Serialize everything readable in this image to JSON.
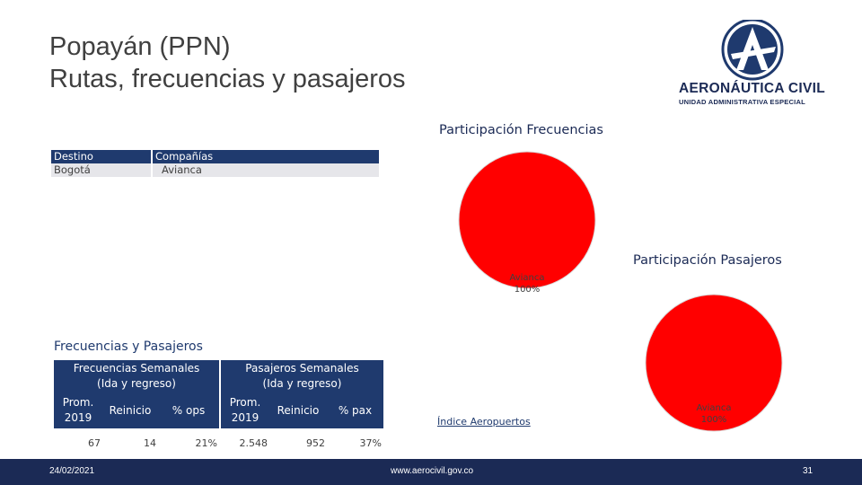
{
  "header": {
    "title_line1": "Popayán (PPN)",
    "title_line2": "Rutas, frecuencias y pasajeros"
  },
  "logo": {
    "name": "AERONÁUTICA CIVIL",
    "subtitle": "UNIDAD ADMINISTRATIVA ESPECIAL",
    "colors": {
      "navy": "#1b2a55",
      "ring": "#1f3a6e"
    }
  },
  "routes": {
    "headers": [
      "Destino",
      "Compañías"
    ],
    "rows": [
      {
        "destino": "Bogotá",
        "companias": "Avianca"
      }
    ]
  },
  "stats": {
    "section_title": "Frecuencias y Pasajeros",
    "freq_header_line1": "Frecuencias Semanales",
    "freq_header_line2": "(Ida y regreso)",
    "pax_header_line1": "Pasajeros Semanales",
    "pax_header_line2": "(Ida y regreso)",
    "col_prom_line1": "Prom.",
    "col_prom_line2": "2019",
    "col_reinicio": "Reinicio",
    "col_ops": "% ops",
    "col_pax": "% pax",
    "freq_prom": "67",
    "freq_reinicio": "14",
    "freq_pct": "21%",
    "pax_prom": "2.548",
    "pax_reinicio": "952",
    "pax_pct": "37%"
  },
  "link_text": "Índice Aeropuertos",
  "footer": {
    "date": "24/02/2021",
    "url": "www.aerocivil.gov.co",
    "page": "31"
  },
  "chart_data": [
    {
      "type": "pie",
      "title": "Participación Frecuencias",
      "slices": [
        {
          "label": "Avianca",
          "value": 100,
          "value_label": "100%",
          "color": "#ff0000"
        }
      ]
    },
    {
      "type": "pie",
      "title": "Participación Pasajeros",
      "slices": [
        {
          "label": "Avianca",
          "value": 100,
          "value_label": "100%",
          "color": "#ff0000"
        }
      ]
    }
  ]
}
